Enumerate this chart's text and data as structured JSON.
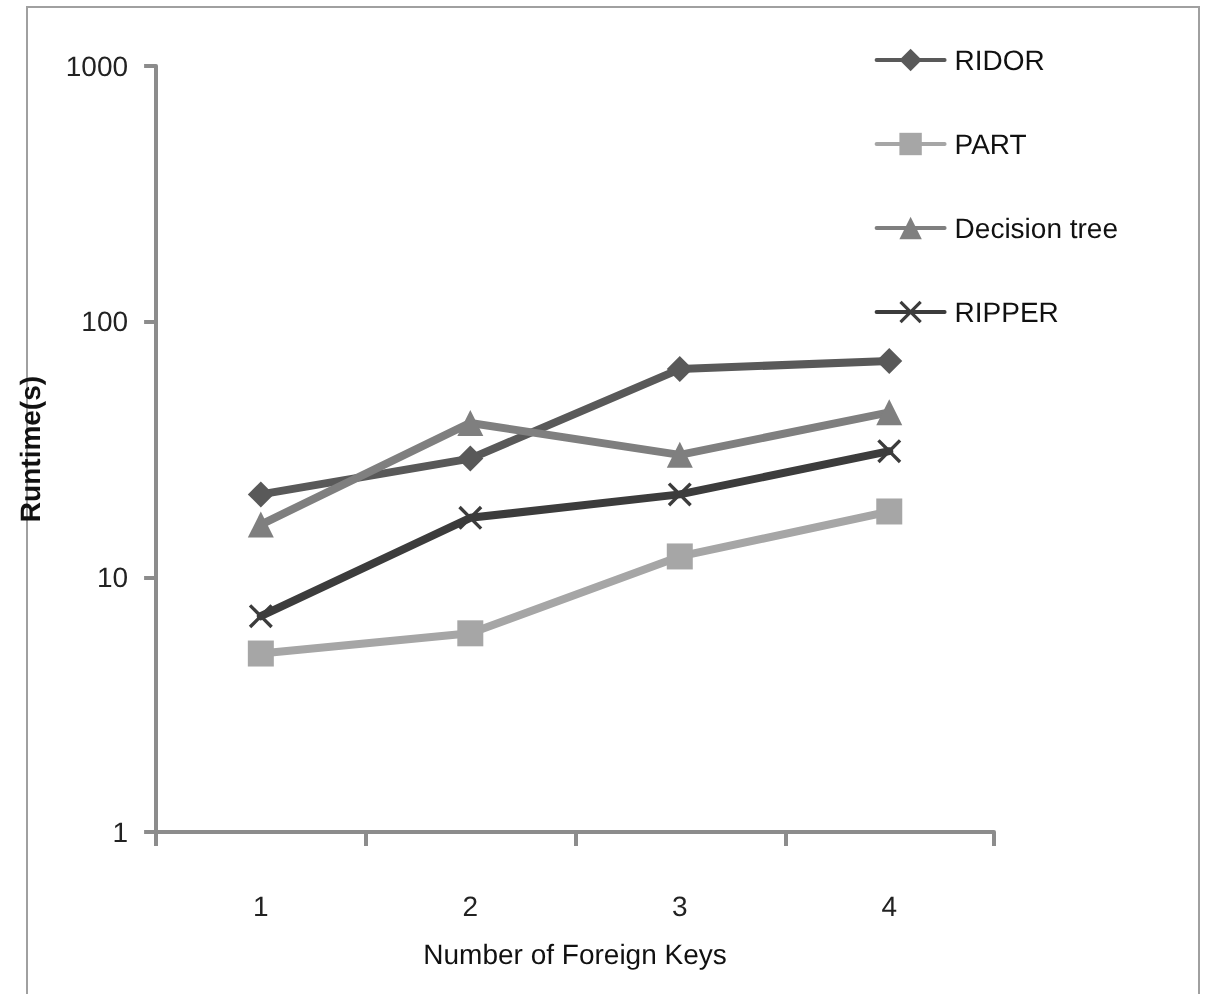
{
  "chart_data": {
    "type": "line",
    "xlabel": "Number of Foreign Keys",
    "ylabel": "Runtime(s)",
    "categories": [
      "1",
      "2",
      "3",
      "4"
    ],
    "series": [
      {
        "name": "RIDOR",
        "color": "#595959",
        "marker": "diamond",
        "values": [
          21,
          29,
          65,
          70
        ]
      },
      {
        "name": "PART",
        "color": "#a6a6a6",
        "marker": "square",
        "values": [
          5,
          6,
          12,
          18
        ]
      },
      {
        "name": "Decision tree",
        "color": "#7f7f7f",
        "marker": "triangle",
        "values": [
          16,
          40,
          30,
          44
        ]
      },
      {
        "name": "RIPPER",
        "color": "#3c3c3c",
        "marker": "cross",
        "values": [
          7,
          17,
          21,
          31
        ]
      }
    ],
    "log": true,
    "ylim": [
      1,
      1000
    ],
    "yticks": [
      1,
      10,
      100,
      1000
    ],
    "grid": false,
    "legend": "top right",
    "line_style": "solid"
  }
}
